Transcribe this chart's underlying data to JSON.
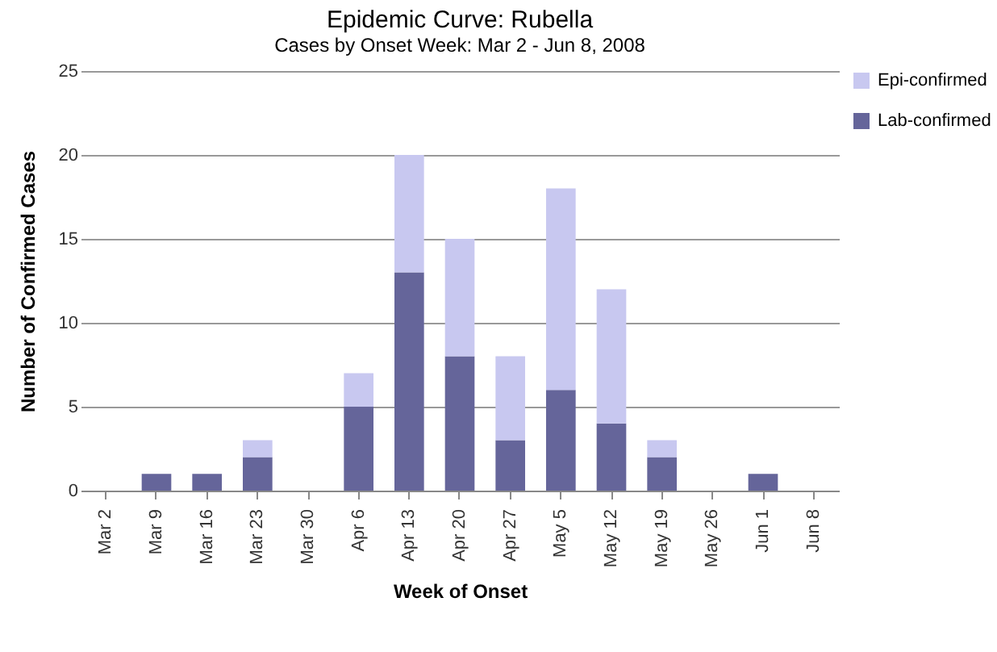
{
  "chart_data": {
    "type": "bar",
    "title": "Epidemic Curve: Rubella",
    "subtitle": "Cases by Onset Week: Mar 2 - Jun 8, 2008",
    "xlabel": "Week of Onset",
    "ylabel": "Number of Confirmed Cases",
    "categories": [
      "Mar 2",
      "Mar 9",
      "Mar 16",
      "Mar 23",
      "Mar 30",
      "Apr 6",
      "Apr 13",
      "Apr 20",
      "Apr 27",
      "May 5",
      "May 12",
      "May 19",
      "May 26",
      "Jun 1",
      "Jun 8"
    ],
    "stacked": true,
    "series": [
      {
        "name": "Lab-confirmed",
        "color": "#65659a",
        "values": [
          0,
          1,
          1,
          2,
          0,
          5,
          13,
          8,
          3,
          6,
          4,
          2,
          0,
          1,
          0
        ]
      },
      {
        "name": "Epi-confirmed",
        "color": "#c8c8f0",
        "values": [
          0,
          0,
          0,
          1,
          0,
          2,
          7,
          7,
          5,
          12,
          8,
          1,
          0,
          0,
          0
        ]
      }
    ],
    "ylim": [
      0,
      25
    ],
    "yticks": [
      0,
      5,
      10,
      15,
      20,
      25
    ],
    "grid": "y",
    "legend": "top right"
  }
}
